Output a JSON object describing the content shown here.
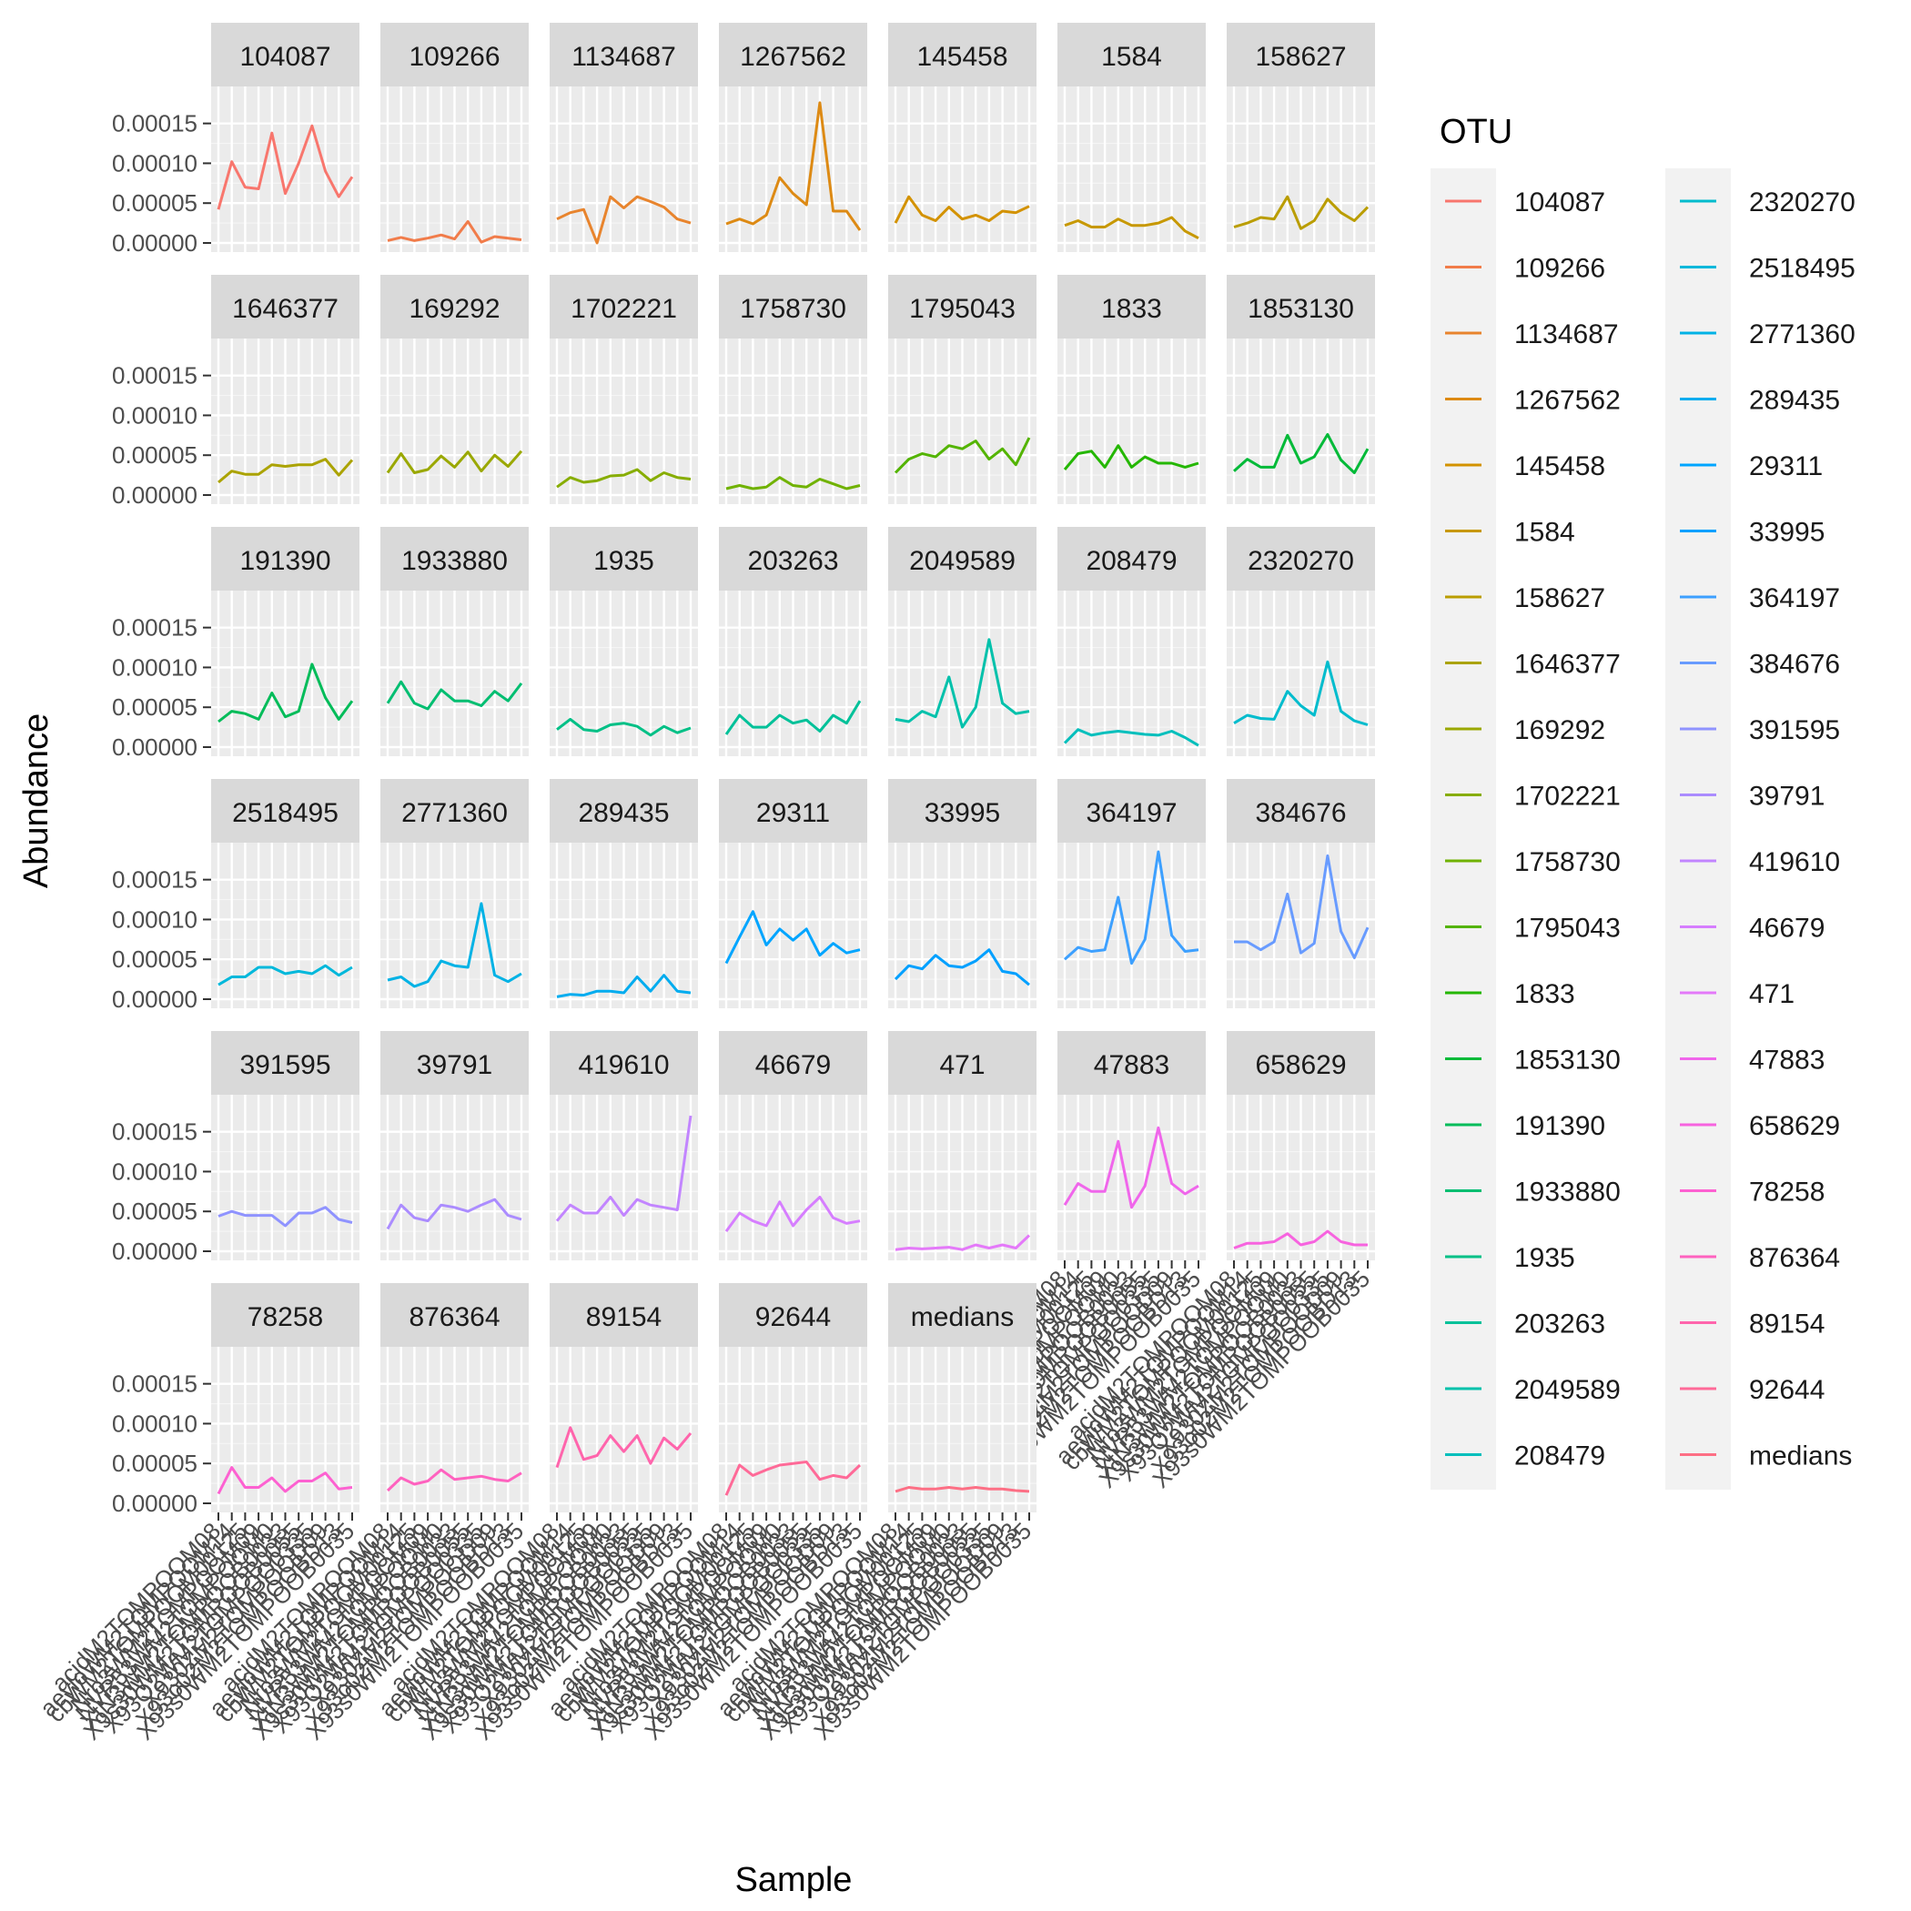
{
  "chart_data": {
    "type": "line",
    "xlabel": "Sample",
    "ylabel": "Abundance",
    "legend_title": "OTU",
    "legend_position": "right",
    "ylim": [
      0,
      0.000185
    ],
    "y_ticks": [
      "0.00000",
      "0.00005",
      "0.00010",
      "0.00015"
    ],
    "y_tick_values": [
      0,
      5e-05,
      0.0001,
      0.00015
    ],
    "samples_count": 11,
    "x_tick_labels": [
      "acidM2TOMPOOM08",
      "aeyloWM2TOMPOOM14",
      "cbWM2TOMPOOM00125",
      "Nro3WM2TOMPOOM09",
      "NVR53WM2TOMPOOM0",
      "XtN3WM2TOMPOOB0033",
      "X9s30WM2TOMPOOB0055",
      "X93O2WM2TOMPOO0335",
      "X930ZM2TOMPOOD09",
      "X93o02M2TOMPOOBD13",
      "X93s0WM2TOMPOOB0035"
    ],
    "series": [
      {
        "name": "104087",
        "color": "#F8766D",
        "values": [
          4.2e-05,
          0.000102,
          7e-05,
          6.8e-05,
          0.000138,
          6.2e-05,
          0.0001,
          0.000147,
          9e-05,
          5.8e-05,
          8.3e-05
        ]
      },
      {
        "name": "109266",
        "color": "#F17C4A",
        "values": [
          3e-06,
          7e-06,
          3e-06,
          6e-06,
          1e-05,
          5e-06,
          2.7e-05,
          1e-06,
          8e-06,
          6e-06,
          4e-06
        ]
      },
      {
        "name": "1134687",
        "color": "#E8842D",
        "values": [
          3e-05,
          3.8e-05,
          4.2e-05,
          0.0,
          5.8e-05,
          4.4e-05,
          5.8e-05,
          5.2e-05,
          4.5e-05,
          3e-05,
          2.5e-05
        ]
      },
      {
        "name": "1267562",
        "color": "#DD8A14",
        "values": [
          2.4e-05,
          3e-05,
          2.4e-05,
          3.5e-05,
          8.2e-05,
          6.2e-05,
          4.8e-05,
          0.000176,
          4e-05,
          4e-05,
          1.6e-05
        ]
      },
      {
        "name": "145458",
        "color": "#D39200",
        "values": [
          2.5e-05,
          5.8e-05,
          3.5e-05,
          2.8e-05,
          4.5e-05,
          3e-05,
          3.5e-05,
          2.8e-05,
          4e-05,
          3.8e-05,
          4.6e-05
        ]
      },
      {
        "name": "1584",
        "color": "#C79800",
        "values": [
          2.2e-05,
          2.8e-05,
          2e-05,
          2e-05,
          3e-05,
          2.2e-05,
          2.2e-05,
          2.5e-05,
          3.2e-05,
          1.5e-05,
          6e-06
        ]
      },
      {
        "name": "158627",
        "color": "#BA9D00",
        "values": [
          2e-05,
          2.5e-05,
          3.2e-05,
          3e-05,
          5.8e-05,
          1.8e-05,
          2.8e-05,
          5.5e-05,
          3.8e-05,
          2.8e-05,
          4.5e-05
        ]
      },
      {
        "name": "1646377",
        "color": "#ABA300",
        "values": [
          1.6e-05,
          3e-05,
          2.6e-05,
          2.6e-05,
          3.8e-05,
          3.6e-05,
          3.8e-05,
          3.8e-05,
          4.5e-05,
          2.5e-05,
          4.4e-05
        ]
      },
      {
        "name": "169292",
        "color": "#9AA800",
        "values": [
          2.8e-05,
          5.2e-05,
          2.8e-05,
          3.2e-05,
          4.9e-05,
          3.5e-05,
          5.4e-05,
          3e-05,
          5e-05,
          3.6e-05,
          5.5e-05
        ]
      },
      {
        "name": "1702221",
        "color": "#87AD00",
        "values": [
          1e-05,
          2.2e-05,
          1.6e-05,
          1.8e-05,
          2.4e-05,
          2.5e-05,
          3.2e-05,
          1.8e-05,
          2.8e-05,
          2.2e-05,
          2e-05
        ]
      },
      {
        "name": "1758730",
        "color": "#70B200",
        "values": [
          8e-06,
          1.2e-05,
          8e-06,
          1e-05,
          2.2e-05,
          1.2e-05,
          1e-05,
          2e-05,
          1.4e-05,
          8e-06,
          1.2e-05
        ]
      },
      {
        "name": "1795043",
        "color": "#53B400",
        "values": [
          2.8e-05,
          4.5e-05,
          5.2e-05,
          4.8e-05,
          6.2e-05,
          5.8e-05,
          6.8e-05,
          4.5e-05,
          5.8e-05,
          3.8e-05,
          7.2e-05
        ]
      },
      {
        "name": "1833",
        "color": "#24B700",
        "values": [
          3.2e-05,
          5.2e-05,
          5.5e-05,
          3.5e-05,
          6.2e-05,
          3.5e-05,
          4.8e-05,
          4e-05,
          4e-05,
          3.5e-05,
          4e-05
        ]
      },
      {
        "name": "1853130",
        "color": "#00BA38",
        "values": [
          3e-05,
          4.5e-05,
          3.5e-05,
          3.5e-05,
          7.5e-05,
          4e-05,
          4.8e-05,
          7.6e-05,
          4.4e-05,
          2.8e-05,
          5.8e-05
        ]
      },
      {
        "name": "191390",
        "color": "#00BC59",
        "values": [
          3.2e-05,
          4.5e-05,
          4.2e-05,
          3.5e-05,
          6.8e-05,
          3.8e-05,
          4.5e-05,
          0.000104,
          6.2e-05,
          3.5e-05,
          5.8e-05
        ]
      },
      {
        "name": "1933880",
        "color": "#00BE71",
        "values": [
          5.5e-05,
          8.2e-05,
          5.5e-05,
          4.8e-05,
          7.2e-05,
          5.8e-05,
          5.8e-05,
          5.2e-05,
          7e-05,
          5.8e-05,
          8e-05
        ]
      },
      {
        "name": "1935",
        "color": "#00C086",
        "values": [
          2.2e-05,
          3.5e-05,
          2.2e-05,
          2e-05,
          2.8e-05,
          3e-05,
          2.6e-05,
          1.5e-05,
          2.6e-05,
          1.8e-05,
          2.4e-05
        ]
      },
      {
        "name": "203263",
        "color": "#00C199",
        "values": [
          1.6e-05,
          4e-05,
          2.5e-05,
          2.5e-05,
          4e-05,
          3e-05,
          3.4e-05,
          2e-05,
          4e-05,
          3e-05,
          5.8e-05
        ]
      },
      {
        "name": "2049589",
        "color": "#00C1AB",
        "values": [
          3.5e-05,
          3.2e-05,
          4.5e-05,
          3.8e-05,
          8.8e-05,
          2.5e-05,
          5e-05,
          0.000135,
          5.5e-05,
          4.2e-05,
          4.5e-05
        ]
      },
      {
        "name": "208479",
        "color": "#00BFBC",
        "values": [
          5e-06,
          2.2e-05,
          1.5e-05,
          1.8e-05,
          2e-05,
          1.8e-05,
          1.6e-05,
          1.5e-05,
          2e-05,
          1.2e-05,
          2e-06
        ]
      },
      {
        "name": "2320270",
        "color": "#00BCCD",
        "values": [
          3e-05,
          4e-05,
          3.6e-05,
          3.5e-05,
          7e-05,
          5.2e-05,
          4e-05,
          0.000107,
          4.5e-05,
          3.3e-05,
          2.8e-05
        ]
      },
      {
        "name": "2518495",
        "color": "#00B8DB",
        "values": [
          1.8e-05,
          2.8e-05,
          2.8e-05,
          4e-05,
          4e-05,
          3.2e-05,
          3.5e-05,
          3.2e-05,
          4.2e-05,
          3e-05,
          4e-05
        ]
      },
      {
        "name": "2771360",
        "color": "#00B2E5",
        "values": [
          2.4e-05,
          2.8e-05,
          1.6e-05,
          2.2e-05,
          4.8e-05,
          4.2e-05,
          4e-05,
          0.00012,
          3e-05,
          2.2e-05,
          3.2e-05
        ]
      },
      {
        "name": "289435",
        "color": "#00ACEF",
        "values": [
          3e-06,
          6e-06,
          5e-06,
          1e-05,
          1e-05,
          8e-06,
          2.8e-05,
          1e-05,
          3e-05,
          1e-05,
          8e-06
        ]
      },
      {
        "name": "29311",
        "color": "#00A5FF",
        "values": [
          4.5e-05,
          7.8e-05,
          0.00011,
          6.8e-05,
          8.8e-05,
          7.4e-05,
          8.8e-05,
          5.5e-05,
          7e-05,
          5.8e-05,
          6.2e-05
        ]
      },
      {
        "name": "33995",
        "color": "#00A0FF",
        "values": [
          2.5e-05,
          4.2e-05,
          3.8e-05,
          5.5e-05,
          4.2e-05,
          4e-05,
          4.8e-05,
          6.2e-05,
          3.5e-05,
          3.2e-05,
          1.8e-05
        ]
      },
      {
        "name": "364197",
        "color": "#3DA0FF",
        "values": [
          5e-05,
          6.5e-05,
          6e-05,
          6.2e-05,
          0.000128,
          4.5e-05,
          7.5e-05,
          0.000185,
          8e-05,
          6e-05,
          6.2e-05
        ]
      },
      {
        "name": "384676",
        "color": "#689BFF",
        "values": [
          7.2e-05,
          7.2e-05,
          6.2e-05,
          7.2e-05,
          0.000132,
          5.8e-05,
          7e-05,
          0.00018,
          8.5e-05,
          5.2e-05,
          9e-05
        ]
      },
      {
        "name": "391595",
        "color": "#8F93FF",
        "values": [
          4.4e-05,
          5e-05,
          4.5e-05,
          4.5e-05,
          4.5e-05,
          3.2e-05,
          4.8e-05,
          4.8e-05,
          5.5e-05,
          4e-05,
          3.6e-05
        ]
      },
      {
        "name": "39791",
        "color": "#AB8CFF",
        "values": [
          2.8e-05,
          5.8e-05,
          4.2e-05,
          3.8e-05,
          5.8e-05,
          5.5e-05,
          5e-05,
          5.8e-05,
          6.5e-05,
          4.5e-05,
          4e-05
        ]
      },
      {
        "name": "419610",
        "color": "#C285FF",
        "values": [
          3.8e-05,
          5.8e-05,
          4.8e-05,
          4.8e-05,
          6.8e-05,
          4.5e-05,
          6.5e-05,
          5.8e-05,
          5.5e-05,
          5.2e-05,
          0.00017
        ]
      },
      {
        "name": "46679",
        "color": "#D67EFF",
        "values": [
          2.5e-05,
          4.8e-05,
          3.8e-05,
          3.2e-05,
          6.2e-05,
          3.2e-05,
          5.2e-05,
          6.8e-05,
          4.2e-05,
          3.5e-05,
          3.8e-05
        ]
      },
      {
        "name": "471",
        "color": "#E479F9",
        "values": [
          2e-06,
          4e-06,
          3e-06,
          4e-06,
          5e-06,
          2e-06,
          8e-06,
          4e-06,
          8e-06,
          4e-06,
          2e-05
        ]
      },
      {
        "name": "47883",
        "color": "#F066EB",
        "values": [
          5.8e-05,
          8.5e-05,
          7.5e-05,
          7.5e-05,
          0.000138,
          5.5e-05,
          8.2e-05,
          0.000155,
          8.5e-05,
          7.2e-05,
          8.2e-05
        ]
      },
      {
        "name": "658629",
        "color": "#F763DF",
        "values": [
          4e-06,
          1e-05,
          1e-05,
          1.2e-05,
          2.2e-05,
          8e-06,
          1.2e-05,
          2.5e-05,
          1.2e-05,
          8e-06,
          8e-06
        ]
      },
      {
        "name": "78258",
        "color": "#FD61D1",
        "values": [
          1.2e-05,
          4.5e-05,
          2e-05,
          2e-05,
          3.2e-05,
          1.5e-05,
          2.8e-05,
          2.8e-05,
          3.8e-05,
          1.8e-05,
          2e-05
        ]
      },
      {
        "name": "876364",
        "color": "#FF62BF",
        "values": [
          1.6e-05,
          3.2e-05,
          2.4e-05,
          2.8e-05,
          4.2e-05,
          3e-05,
          3.2e-05,
          3.4e-05,
          3e-05,
          2.8e-05,
          3.8e-05
        ]
      },
      {
        "name": "89154",
        "color": "#FF65AC",
        "values": [
          4.5e-05,
          9.5e-05,
          5.5e-05,
          6e-05,
          8.5e-05,
          6.5e-05,
          8.5e-05,
          5e-05,
          8.2e-05,
          6.8e-05,
          8.8e-05
        ]
      },
      {
        "name": "92644",
        "color": "#FF6A98",
        "values": [
          1e-05,
          4.8e-05,
          3.5e-05,
          4.2e-05,
          4.8e-05,
          5e-05,
          5.2e-05,
          3e-05,
          3.5e-05,
          3.2e-05,
          4.8e-05
        ]
      },
      {
        "name": "medians",
        "color": "#FD6F85",
        "values": [
          1.5e-05,
          2e-05,
          1.8e-05,
          1.8e-05,
          2e-05,
          1.8e-05,
          2e-05,
          1.8e-05,
          1.8e-05,
          1.6e-05,
          1.5e-05
        ]
      }
    ]
  }
}
